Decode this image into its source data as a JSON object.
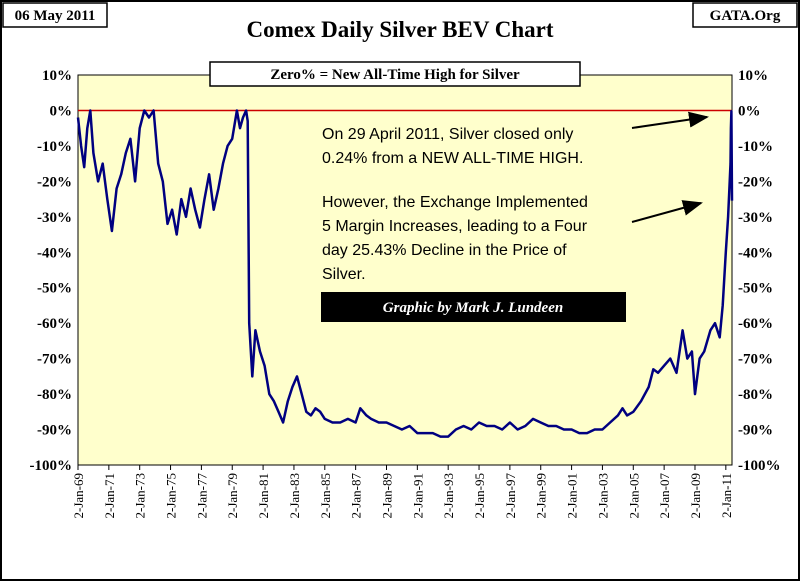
{
  "header": {
    "date": "06 May 2011",
    "source": "GATA.Org"
  },
  "chart_data": {
    "type": "line",
    "title": "Comex Daily Silver BEV Chart",
    "subtitle": "Zero% = New All-Time High for Silver",
    "y_ticks": [
      "10%",
      "0%",
      "-10%",
      "-20%",
      "-30%",
      "-40%",
      "-50%",
      "-60%",
      "-70%",
      "-80%",
      "-90%",
      "-100%"
    ],
    "y_tick_values": [
      10,
      0,
      -10,
      -20,
      -30,
      -40,
      -50,
      -60,
      -70,
      -80,
      -90,
      -100
    ],
    "ylim": [
      -100,
      10
    ],
    "x_range": [
      1969.0,
      2011.4
    ],
    "x_ticks": [
      "2-Jan-69",
      "2-Jan-71",
      "2-Jan-73",
      "2-Jan-75",
      "2-Jan-77",
      "2-Jan-79",
      "2-Jan-81",
      "2-Jan-83",
      "2-Jan-85",
      "2-Jan-87",
      "2-Jan-89",
      "2-Jan-91",
      "2-Jan-93",
      "2-Jan-95",
      "2-Jan-97",
      "2-Jan-99",
      "2-Jan-01",
      "2-Jan-03",
      "2-Jan-05",
      "2-Jan-07",
      "2-Jan-09",
      "2-Jan-11"
    ],
    "x_tick_values": [
      1969,
      1971,
      1973,
      1975,
      1977,
      1979,
      1981,
      1983,
      1985,
      1987,
      1989,
      1991,
      1993,
      1995,
      1997,
      1999,
      2001,
      2003,
      2005,
      2007,
      2009,
      2011
    ],
    "reference_line": {
      "y": 0,
      "label": "0%"
    },
    "series": [
      {
        "name": "Silver BEV",
        "x": [
          1969.0,
          1969.2,
          1969.4,
          1969.6,
          1969.8,
          1970.0,
          1970.3,
          1970.6,
          1970.9,
          1971.2,
          1971.5,
          1971.8,
          1972.1,
          1972.4,
          1972.7,
          1973.0,
          1973.3,
          1973.6,
          1973.9,
          1974.2,
          1974.5,
          1974.8,
          1975.1,
          1975.4,
          1975.7,
          1976.0,
          1976.3,
          1976.6,
          1976.9,
          1977.2,
          1977.5,
          1977.8,
          1978.1,
          1978.4,
          1978.7,
          1979.0,
          1979.3,
          1979.5,
          1979.7,
          1979.9,
          1980.0,
          1980.1,
          1980.3,
          1980.5,
          1980.8,
          1981.1,
          1981.4,
          1981.7,
          1982.0,
          1982.3,
          1982.6,
          1982.9,
          1983.2,
          1983.5,
          1983.8,
          1984.1,
          1984.4,
          1984.7,
          1985.0,
          1985.5,
          1986.0,
          1986.5,
          1987.0,
          1987.3,
          1987.7,
          1988.0,
          1988.5,
          1989.0,
          1989.5,
          1990.0,
          1990.5,
          1991.0,
          1991.5,
          1992.0,
          1992.5,
          1993.0,
          1993.5,
          1994.0,
          1994.5,
          1995.0,
          1995.5,
          1996.0,
          1996.5,
          1997.0,
          1997.5,
          1998.0,
          1998.5,
          1999.0,
          1999.5,
          2000.0,
          2000.5,
          2001.0,
          2001.5,
          2002.0,
          2002.5,
          2003.0,
          2003.5,
          2004.0,
          2004.3,
          2004.6,
          2005.0,
          2005.5,
          2006.0,
          2006.3,
          2006.6,
          2007.0,
          2007.4,
          2007.8,
          2008.2,
          2008.5,
          2008.8,
          2009.0,
          2009.3,
          2009.6,
          2010.0,
          2010.3,
          2010.6,
          2010.8,
          2011.0,
          2011.15,
          2011.25,
          2011.3,
          2011.33,
          2011.36,
          2011.4
        ],
        "values": [
          -2,
          -10,
          -16,
          -5,
          0,
          -12,
          -20,
          -15,
          -25,
          -34,
          -22,
          -18,
          -12,
          -8,
          -20,
          -5,
          0,
          -2,
          0,
          -15,
          -20,
          -32,
          -28,
          -35,
          -25,
          -30,
          -22,
          -28,
          -33,
          -25,
          -18,
          -28,
          -22,
          -15,
          -10,
          -8,
          0,
          -5,
          -2,
          0,
          -3,
          -60,
          -75,
          -62,
          -68,
          -72,
          -80,
          -82,
          -85,
          -88,
          -82,
          -78,
          -75,
          -80,
          -85,
          -86,
          -84,
          -85,
          -87,
          -88,
          -88,
          -87,
          -88,
          -84,
          -86,
          -87,
          -88,
          -88,
          -89,
          -90,
          -89,
          -91,
          -91,
          -91,
          -92,
          -92,
          -90,
          -89,
          -90,
          -88,
          -89,
          -89,
          -90,
          -88,
          -90,
          -89,
          -87,
          -88,
          -89,
          -89,
          -90,
          -90,
          -91,
          -91,
          -90,
          -90,
          -88,
          -86,
          -84,
          -86,
          -85,
          -82,
          -78,
          -73,
          -74,
          -72,
          -70,
          -74,
          -62,
          -70,
          -68,
          -80,
          -70,
          -68,
          -62,
          -60,
          -64,
          -55,
          -40,
          -30,
          -20,
          -15,
          -5,
          -0.24,
          -25.43
        ]
      }
    ],
    "annotations": {
      "lines": [
        "On 29 April 2011, Silver closed only",
        "0.24% from a NEW ALL-TIME HIGH.",
        "However, the Exchange Implemented",
        "5 Margin Increases, leading to a Four",
        "day 25.43% Decline in the Price of",
        "Silver."
      ],
      "credit": "Graphic by Mark J. Lundeen"
    }
  },
  "colors": {
    "plot_bg": "#ffffcc",
    "line": "#000080",
    "zero_line": "#cc0000",
    "credit_bg": "#000000",
    "credit_text": "#ffffff"
  }
}
